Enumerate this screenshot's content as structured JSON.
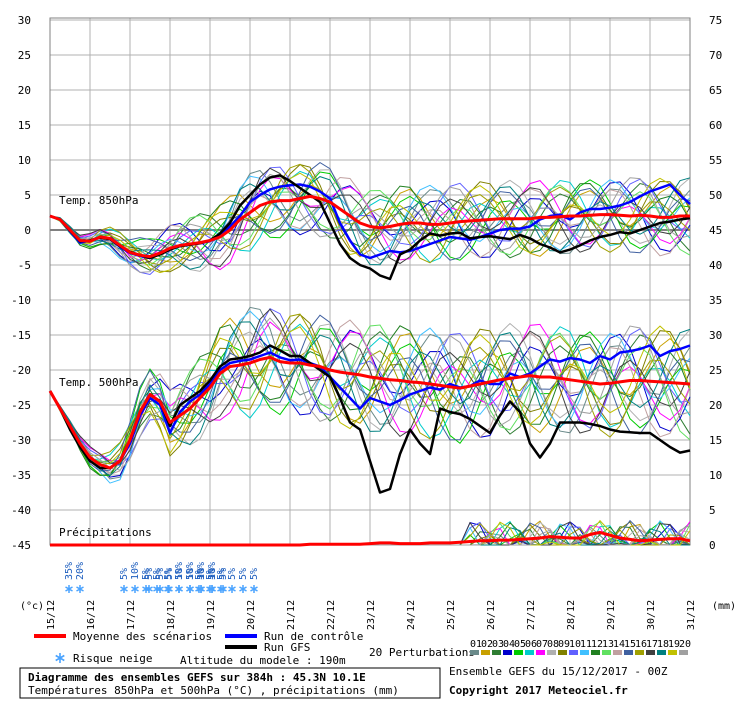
{
  "chart_data": {
    "type": "line",
    "left_axis_ticks": [
      "30",
      "25",
      "20",
      "15",
      "10",
      "5",
      "0",
      "-5",
      "-10",
      "-15",
      "-20",
      "-25",
      "-30",
      "-35",
      "-40",
      "-45"
    ],
    "right_axis_ticks": [
      "75",
      "70",
      "65",
      "60",
      "55",
      "50",
      "45",
      "40",
      "35",
      "30",
      "25",
      "20",
      "15",
      "10",
      "5",
      "0"
    ],
    "left_unit": "(°c)",
    "right_unit": "(mm)",
    "x_labels": [
      "15/12",
      "16/12",
      "17/12",
      "18/12",
      "19/12",
      "20/12",
      "21/12",
      "22/12",
      "23/12",
      "24/12",
      "25/12",
      "26/12",
      "27/12",
      "28/12",
      "29/12",
      "30/12",
      "31/12"
    ],
    "panel_labels": {
      "t850": "Temp. 850hPa",
      "t500": "Temp. 500hPa",
      "precip": "Précipitations"
    },
    "x": [
      0,
      6,
      12,
      18,
      24,
      30,
      36,
      42,
      48,
      54,
      60,
      66,
      72,
      78,
      84,
      90,
      96,
      102,
      108,
      114,
      120,
      126,
      132,
      138,
      144,
      150,
      156,
      162,
      168,
      174,
      180,
      186,
      192,
      198,
      204,
      210,
      216,
      222,
      228,
      234,
      240,
      246,
      252,
      258,
      264,
      270,
      276,
      282,
      288,
      294,
      300,
      306,
      312,
      318,
      324,
      330,
      336,
      342,
      348,
      354,
      360,
      366,
      372,
      378,
      384
    ],
    "series": [
      {
        "name": "Moyenne des scénarios",
        "role": "t850",
        "color": "#ff0000",
        "values": [
          2,
          1.5,
          0,
          -1.5,
          -1.6,
          -1,
          -1.2,
          -2.2,
          -3.2,
          -3.6,
          -3.8,
          -3.3,
          -2.6,
          -2.2,
          -2,
          -1.8,
          -1.5,
          -1,
          0,
          1.5,
          2.5,
          3.5,
          4,
          4.2,
          4.2,
          4.5,
          4.8,
          4.5,
          4,
          3,
          2,
          1,
          0.5,
          0.3,
          0.5,
          0.8,
          1,
          1,
          0.8,
          0.8,
          1,
          1.2,
          1.3,
          1.4,
          1.5,
          1.6,
          1.6,
          1.6,
          1.6,
          1.8,
          1.8,
          1.9,
          2,
          2,
          2.1,
          2.2,
          2.2,
          2.1,
          2,
          2.1,
          2,
          1.8,
          1.8,
          2,
          2
        ]
      },
      {
        "name": "Run de contrôle",
        "role": "t850",
        "color": "#0000ff",
        "values": [
          2,
          1.5,
          -0.2,
          -1.8,
          -1.5,
          -1,
          -1.3,
          -2.4,
          -3.3,
          -3.7,
          -4,
          -3.2,
          -2.7,
          -2.2,
          -2,
          -1.9,
          -1.6,
          -0.8,
          0.5,
          2,
          4,
          5,
          5.8,
          6.2,
          6.4,
          6.5,
          6.2,
          5.5,
          4.5,
          1,
          -1.5,
          -3.5,
          -4,
          -3.5,
          -3,
          -3.2,
          -3,
          -2.5,
          -2,
          -1.5,
          -1,
          -1.2,
          -1.4,
          -1,
          -0.5,
          0,
          0.2,
          0.2,
          0.5,
          1.5,
          2,
          2.2,
          1.5,
          2.5,
          3,
          3,
          3.2,
          3.5,
          4,
          4.8,
          5.5,
          6,
          6.5,
          5,
          3.7
        ]
      },
      {
        "name": "Run GFS",
        "role": "t850",
        "color": "#000000",
        "values": [
          2,
          1.5,
          -0.1,
          -1.6,
          -1.5,
          -1.1,
          -1.3,
          -2.3,
          -3.1,
          -3.6,
          -4,
          -3.5,
          -2.8,
          -2.3,
          -2.1,
          -1.9,
          -1.5,
          -0.5,
          1,
          3.5,
          5,
          6.5,
          7.5,
          7.8,
          7,
          6,
          5,
          4,
          1,
          -2,
          -4,
          -5,
          -5.5,
          -6.5,
          -7,
          -3.5,
          -2.8,
          -1.5,
          -0.5,
          -0.8,
          -0.5,
          -0.4,
          -1.2,
          -1,
          -0.9,
          -1.1,
          -1.3,
          -0.7,
          -1.2,
          -2,
          -2.5,
          -3.2,
          -2.8,
          -2.2,
          -1.5,
          -1,
          -0.7,
          -0.3,
          -0.5,
          0,
          0.5,
          1,
          1.2,
          1.5,
          1.7
        ]
      },
      {
        "name": "Moyenne des scénarios",
        "role": "t500",
        "color": "#ff0000",
        "values": [
          -23,
          -25.5,
          -28,
          -30.5,
          -32.5,
          -33.5,
          -34,
          -33,
          -30,
          -26,
          -23.5,
          -24.5,
          -27.5,
          -26.5,
          -25.5,
          -24,
          -22.5,
          -20.5,
          -19.5,
          -19.3,
          -19,
          -18.5,
          -18.2,
          -18.8,
          -19,
          -19,
          -19.3,
          -19.5,
          -20,
          -20.3,
          -20.5,
          -20.7,
          -21,
          -21.2,
          -21.4,
          -21.5,
          -21.7,
          -21.8,
          -22,
          -22.2,
          -22.4,
          -22.6,
          -22.3,
          -22,
          -21.7,
          -21.4,
          -21.2,
          -21,
          -20.8,
          -21,
          -21,
          -21.2,
          -21.4,
          -21.6,
          -21.8,
          -22,
          -21.9,
          -21.7,
          -21.5,
          -21.5,
          -21.6,
          -21.7,
          -21.8,
          -21.9,
          -22
        ]
      },
      {
        "name": "Run de contrôle",
        "role": "t500",
        "color": "#0000ff",
        "values": [
          -23,
          -25.5,
          -28,
          -30.5,
          -32.5,
          -33.5,
          -34,
          -33,
          -30.5,
          -26.5,
          -24,
          -25,
          -29,
          -26,
          -24.5,
          -23.5,
          -22,
          -20,
          -19,
          -18.7,
          -18.5,
          -18,
          -17.5,
          -18.2,
          -18.6,
          -18.5,
          -19,
          -19.5,
          -21,
          -22.5,
          -24,
          -25.5,
          -24,
          -24.5,
          -25,
          -24.3,
          -23.5,
          -23,
          -22.5,
          -22.8,
          -22,
          -22.5,
          -22.3,
          -21.5,
          -22,
          -22,
          -20.5,
          -21,
          -20.5,
          -19.5,
          -18.5,
          -18.8,
          -18.3,
          -18.5,
          -19,
          -18,
          -18.5,
          -17.5,
          -17.3,
          -17,
          -16.5,
          -18,
          -17.3,
          -17,
          -16.5
        ]
      },
      {
        "name": "Run GFS",
        "role": "t500",
        "color": "#000000",
        "values": [
          -23,
          -25.5,
          -28.5,
          -31,
          -33,
          -34,
          -34,
          -33,
          -30,
          -26,
          -23.5,
          -24.5,
          -28,
          -25,
          -24,
          -23,
          -21.5,
          -19.5,
          -18.5,
          -18.3,
          -18,
          -17.5,
          -16.5,
          -17.2,
          -18,
          -18,
          -19,
          -20,
          -21,
          -24,
          -27.5,
          -28.5,
          -33,
          -37.5,
          -37,
          -32,
          -28.5,
          -30.5,
          -32,
          -25.5,
          -26,
          -26.3,
          -27,
          -28,
          -29,
          -26.5,
          -24.5,
          -26,
          -30.5,
          -32.5,
          -30.5,
          -27.5,
          -27.5,
          -27.5,
          -27.7,
          -28,
          -28.5,
          -28.8,
          -28.9,
          -29,
          -29,
          -30,
          -31,
          -31.8,
          -31.5
        ]
      },
      {
        "name": "Moyenne des scénarios",
        "role": "precip",
        "color": "#ff0000",
        "values": [
          0,
          0,
          0,
          0,
          0,
          0,
          0,
          0,
          0,
          0,
          0,
          0,
          0,
          0,
          0,
          0,
          0,
          0,
          0,
          0,
          0,
          0,
          0,
          0,
          0,
          0,
          0.1,
          0.1,
          0.1,
          0.1,
          0.1,
          0.1,
          0.2,
          0.3,
          0.3,
          0.2,
          0.2,
          0.2,
          0.3,
          0.3,
          0.3,
          0.4,
          0.5,
          0.6,
          0.6,
          0.7,
          0.7,
          0.8,
          0.9,
          1,
          1.2,
          1.1,
          1,
          1,
          1.5,
          1.8,
          1.4,
          1,
          0.8,
          0.6,
          0.7,
          0.8,
          0.9,
          0.9,
          0.6
        ]
      }
    ],
    "perturbation_colors": [
      "#6a8a8a",
      "#c8a000",
      "#2e7d32",
      "#0000cc",
      "#00cc00",
      "#00cccc",
      "#ff00ff",
      "#b0b0b0",
      "#808000",
      "#6060ff",
      "#40c0ff",
      "#208020",
      "#60e060",
      "#c0a0a0",
      "#4060a0",
      "#a0a000",
      "#404040",
      "#008080",
      "#c0c000",
      "#a0a0a0"
    ],
    "snow_risk": [
      {
        "x": 24,
        "labels": [
          "35%",
          "20%"
        ]
      },
      {
        "x": 57,
        "labels": [
          "5%",
          "10%",
          "5%",
          "5%",
          "5%",
          "10%",
          "10%",
          "10%",
          "10%"
        ]
      },
      {
        "x": 72,
        "labels": [
          "5%",
          "5%"
        ]
      },
      {
        "x": 84,
        "labels": [
          "5%"
        ]
      },
      {
        "x": 90,
        "labels": [
          "5%",
          "5%",
          "5%",
          "5%",
          "5%"
        ]
      },
      {
        "x": 102,
        "labels": [
          "5%",
          "5%",
          "5%",
          "5%",
          "5%",
          "5%"
        ]
      }
    ]
  },
  "legend": {
    "mean_label": "Moyenne des scénarios",
    "control_label": "Run de contrôle",
    "gfs_label": "Run GFS",
    "snow_label": "Risque neige",
    "altitude_label": "Altitude du modele : 190m",
    "perturbations_label": "20 Perturbations",
    "perturbation_numbers": [
      "01",
      "02",
      "03",
      "04",
      "05",
      "06",
      "07",
      "08",
      "09",
      "10",
      "11",
      "12",
      "13",
      "14",
      "15",
      "16",
      "17",
      "18",
      "19",
      "20"
    ]
  },
  "footer": {
    "title": "Diagramme des ensembles GEFS sur 384h : 45.3N 10.1E",
    "subtitle": "Températures 850hPa et 500hPa (°C) , précipitations (mm)",
    "ensemble_label": "Ensemble GEFS du 15/12/2017 - 00Z",
    "copyright": "Copyright 2017 Meteociel.fr"
  },
  "colors": {
    "mean": "#ff0000",
    "control": "#0000ff",
    "gfs": "#000000",
    "snow": "#4aa3ff"
  }
}
